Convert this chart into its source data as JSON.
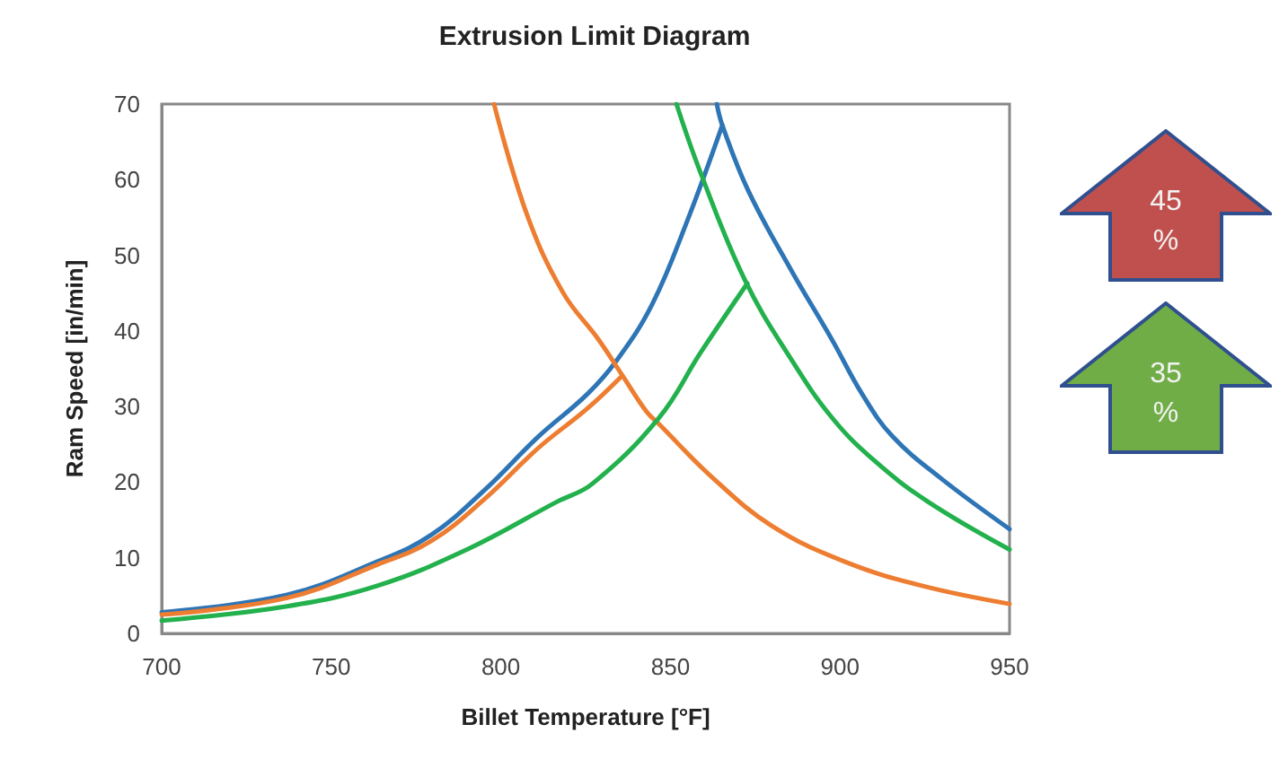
{
  "chart_data": {
    "type": "line",
    "title": "Extrusion Limit Diagram",
    "xlabel": "Billet Temperature [°F]",
    "ylabel": "Ram Speed [in/min]",
    "xlim": [
      700,
      950
    ],
    "xticks": [
      700,
      750,
      800,
      850,
      900,
      950
    ],
    "ylim": [
      0,
      70
    ],
    "yticks": [
      0,
      10,
      20,
      30,
      40,
      50,
      60,
      70
    ],
    "grid": false,
    "marker": "none",
    "line_style": "solid",
    "annotations": [
      "45 %",
      "35 %"
    ],
    "series": [
      {
        "color": "#2e75b6",
        "x": [
          700,
          737,
          763.6,
          779.4,
          795.3,
          811,
          825.4,
          834,
          844.6,
          855,
          865.3
        ],
        "values": [
          2.8,
          5.1,
          9.5,
          13,
          19,
          26,
          31.6,
          36,
          43.5,
          54.6,
          67.2
        ]
      },
      {
        "color": "#2e75b6",
        "x": [
          863.7,
          865.3,
          873,
          885.4,
          897.7,
          906.6,
          915.4,
          929.5,
          950
        ],
        "values": [
          70,
          67.2,
          58.5,
          48.2,
          38.8,
          31.6,
          26.1,
          20.6,
          13.8
        ]
      },
      {
        "color": "#ed7d31",
        "x": [
          700,
          737,
          763.6,
          779.4,
          795.3,
          811,
          825.4,
          835.6
        ],
        "values": [
          2.5,
          4.7,
          9.1,
          12.2,
          17.8,
          24.5,
          29.7,
          34
        ]
      },
      {
        "color": "#ed7d31",
        "x": [
          798,
          807.7,
          818.3,
          828.9,
          836,
          843,
          846.6,
          862.4,
          880,
          901.3,
          924.2,
          950
        ],
        "values": [
          70,
          55.4,
          45.1,
          38.8,
          34,
          29.3,
          27.7,
          20.6,
          14.2,
          9.5,
          6.3,
          3.9
        ]
      },
      {
        "color": "#22b14c",
        "x": [
          700,
          737,
          763.6,
          790,
          816.5,
          827,
          846.6,
          859,
          872.7
        ],
        "values": [
          1.7,
          3.6,
          6.3,
          11.1,
          17.4,
          19.8,
          28.5,
          37.2,
          46.3
        ]
      },
      {
        "color": "#22b14c",
        "x": [
          851.8,
          858.9,
          872,
          885.4,
          897.7,
          910,
          926,
          950
        ],
        "values": [
          70,
          60.9,
          46.7,
          36.4,
          28.5,
          22.9,
          17.4,
          11.1
        ]
      }
    ]
  }
}
